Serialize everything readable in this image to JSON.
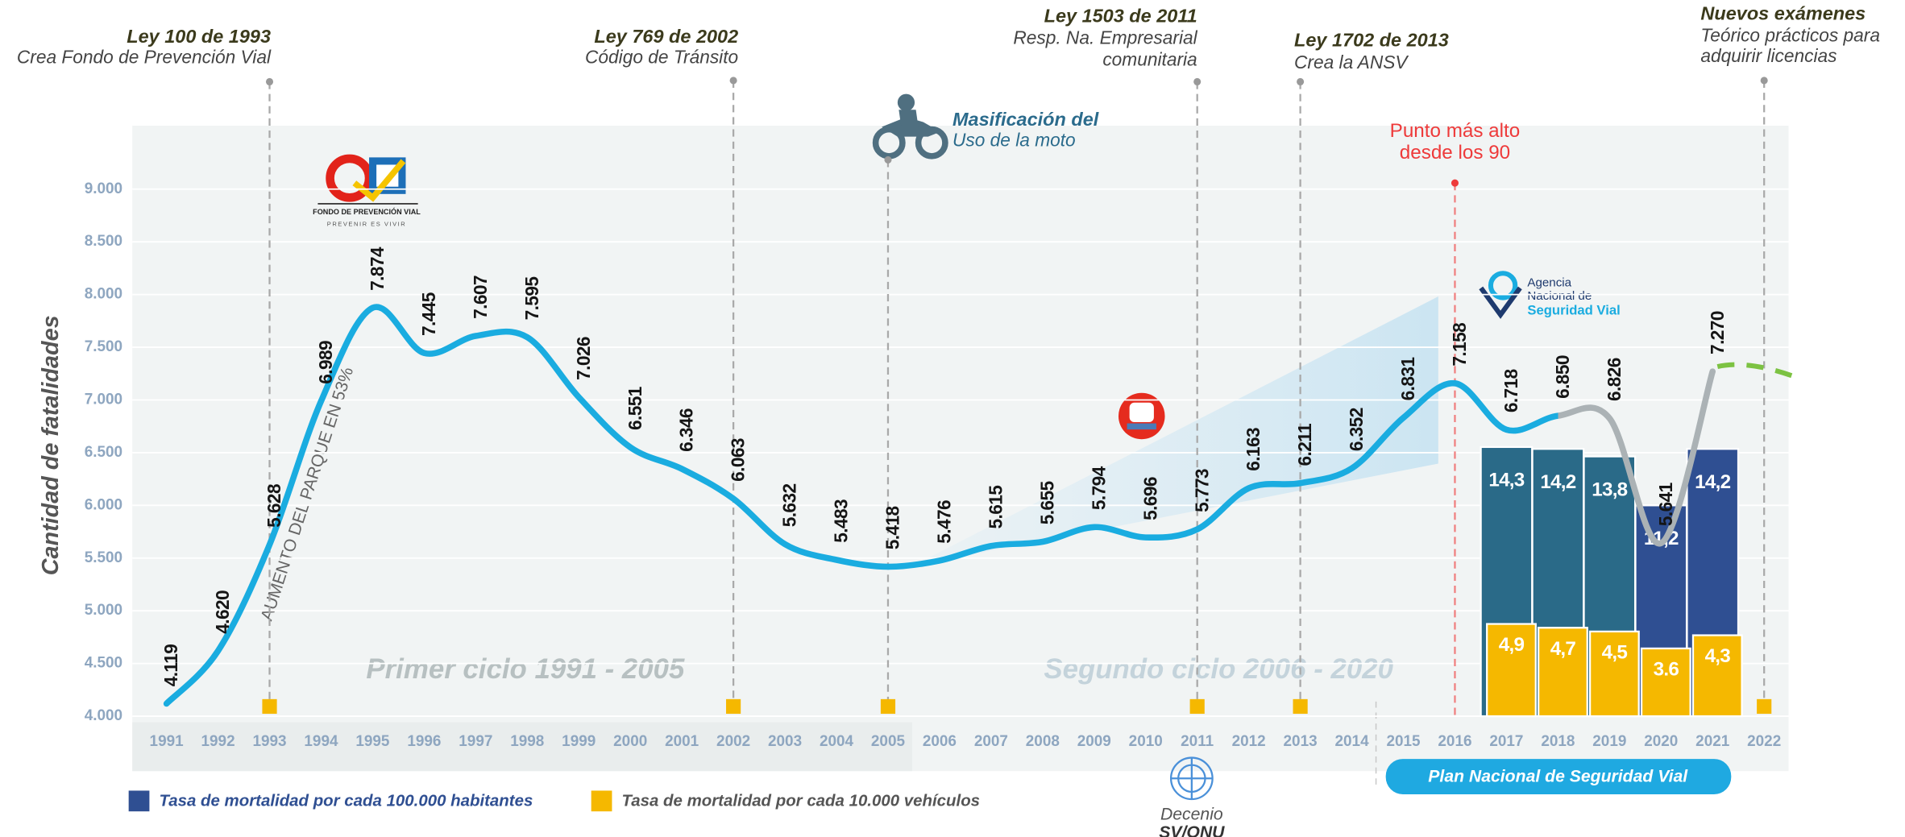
{
  "chart_data": [
    {
      "type": "line",
      "y_label": "Cantidad de fatalidades",
      "categories": [
        "1991",
        "1992",
        "1993",
        "1994",
        "1995",
        "1996",
        "1997",
        "1998",
        "1999",
        "2000",
        "2001",
        "2002",
        "2003",
        "2004",
        "2005",
        "2006",
        "2007",
        "2008",
        "2009",
        "2010",
        "2011",
        "2012",
        "2013",
        "2014",
        "2015",
        "2016",
        "2017",
        "2018",
        "2019",
        "2020",
        "2021",
        "2022"
      ],
      "values": [
        4119,
        4620,
        5628,
        6989,
        7874,
        7445,
        7607,
        7595,
        7026,
        6551,
        6346,
        6063,
        5632,
        5483,
        5418,
        5476,
        5615,
        5655,
        5794,
        5696,
        5773,
        6163,
        6211,
        6352,
        6831,
        7158,
        6718,
        6850,
        6826,
        5641,
        7270,
        null
      ],
      "value_labels": [
        "4.119",
        "4.620",
        "5.628",
        "6.989",
        "7.874",
        "7.445",
        "7.607",
        "7.595",
        "7.026",
        "6.551",
        "6.346",
        "6.063",
        "5.632",
        "5.483",
        "5.418",
        "5.476",
        "5.615",
        "5.655",
        "5.794",
        "5.696",
        "5.773",
        "6.163",
        "6.211",
        "6.352",
        "6.831",
        "7.158",
        "6.718",
        "6.850",
        "6.826",
        "5.641",
        "7.270",
        null
      ],
      "color": "#1aace0",
      "color_after_2018": "#abb2b5",
      "ylim": [
        4000,
        9000
      ],
      "yticks": [
        {
          "value": 4000,
          "label": "4.000"
        },
        {
          "value": 4500,
          "label": "4.500"
        },
        {
          "value": 5000,
          "label": "5.000"
        },
        {
          "value": 5500,
          "label": "5.500"
        },
        {
          "value": 6000,
          "label": "6.000"
        },
        {
          "value": 6500,
          "label": "6.500"
        },
        {
          "value": 7000,
          "label": "7.000"
        },
        {
          "value": 7500,
          "label": "7.500"
        },
        {
          "value": 8000,
          "label": "8.000"
        },
        {
          "value": 8500,
          "label": "8.500"
        },
        {
          "value": 9000,
          "label": "9.000"
        }
      ],
      "grid": true
    },
    {
      "type": "bar",
      "categories": [
        "2017",
        "2018",
        "2019",
        "2020",
        "2021"
      ],
      "ylim": [
        0,
        28
      ],
      "legend": "bottom-left",
      "series": [
        {
          "name": "Tasa de mortalidad por cada 100.000 habitantes",
          "color": "#2f4f92",
          "colors": [
            "#2a6a88",
            "#2a6a88",
            "#2a6a88",
            "#2f4f92",
            "#2f4f92"
          ],
          "values": [
            14.3,
            14.2,
            13.8,
            11.2,
            14.2
          ],
          "value_labels": [
            "14,3",
            "14,2",
            "13,8",
            "11,2",
            "14,2"
          ]
        },
        {
          "name": "Tasa de mortalidad por cada 10.000 vehículos",
          "color": "#f5b800",
          "values": [
            4.9,
            4.7,
            4.5,
            3.6,
            4.3
          ],
          "value_labels": [
            "4,9",
            "4,7",
            "4,5",
            "3.6",
            "4,3"
          ]
        }
      ]
    }
  ],
  "annotations": {
    "events": [
      {
        "category": "1993",
        "lines": [
          "Ley 100 de 1993",
          "Crea Fondo de Prevención Vial"
        ]
      },
      {
        "category": "2002",
        "lines": [
          "Ley 769 de 2002",
          "Código de Tránsito"
        ]
      },
      {
        "category": "2011",
        "lines": [
          "Ley 1503 de 2011",
          "Resp. Na. Empresarial",
          "comunitaria"
        ]
      },
      {
        "category": "2013",
        "lines": [
          "Ley 1702 de 2013",
          "Crea la ANSV"
        ]
      },
      {
        "category": "2022",
        "lines": [
          "Nuevos exámenes",
          "Teórico prácticos para",
          "adquirir licencias"
        ]
      }
    ],
    "moto": {
      "category": "2005",
      "lines": [
        "Masificación del",
        "Uso de la moto"
      ]
    },
    "peak": {
      "category": "2016",
      "lines": [
        "Punto más alto",
        "desde los 90"
      ]
    },
    "cycles": [
      "Primer ciclo 1991 - 2005",
      "Segundo ciclo 2006 - 2020"
    ],
    "growth": "AUMENTO DEL PARQUE EN 53%",
    "fpv": [
      "FONDO DE PREVENCIÓN VIAL",
      "PREVENIR ES VIVIR"
    ],
    "ansv": [
      "Agencia",
      "Nacional de",
      "Seguridad Vial"
    ],
    "plan": "Plan Nacional de Seguridad Vial",
    "decenio": [
      "Decenio",
      "SV/ONU"
    ]
  }
}
